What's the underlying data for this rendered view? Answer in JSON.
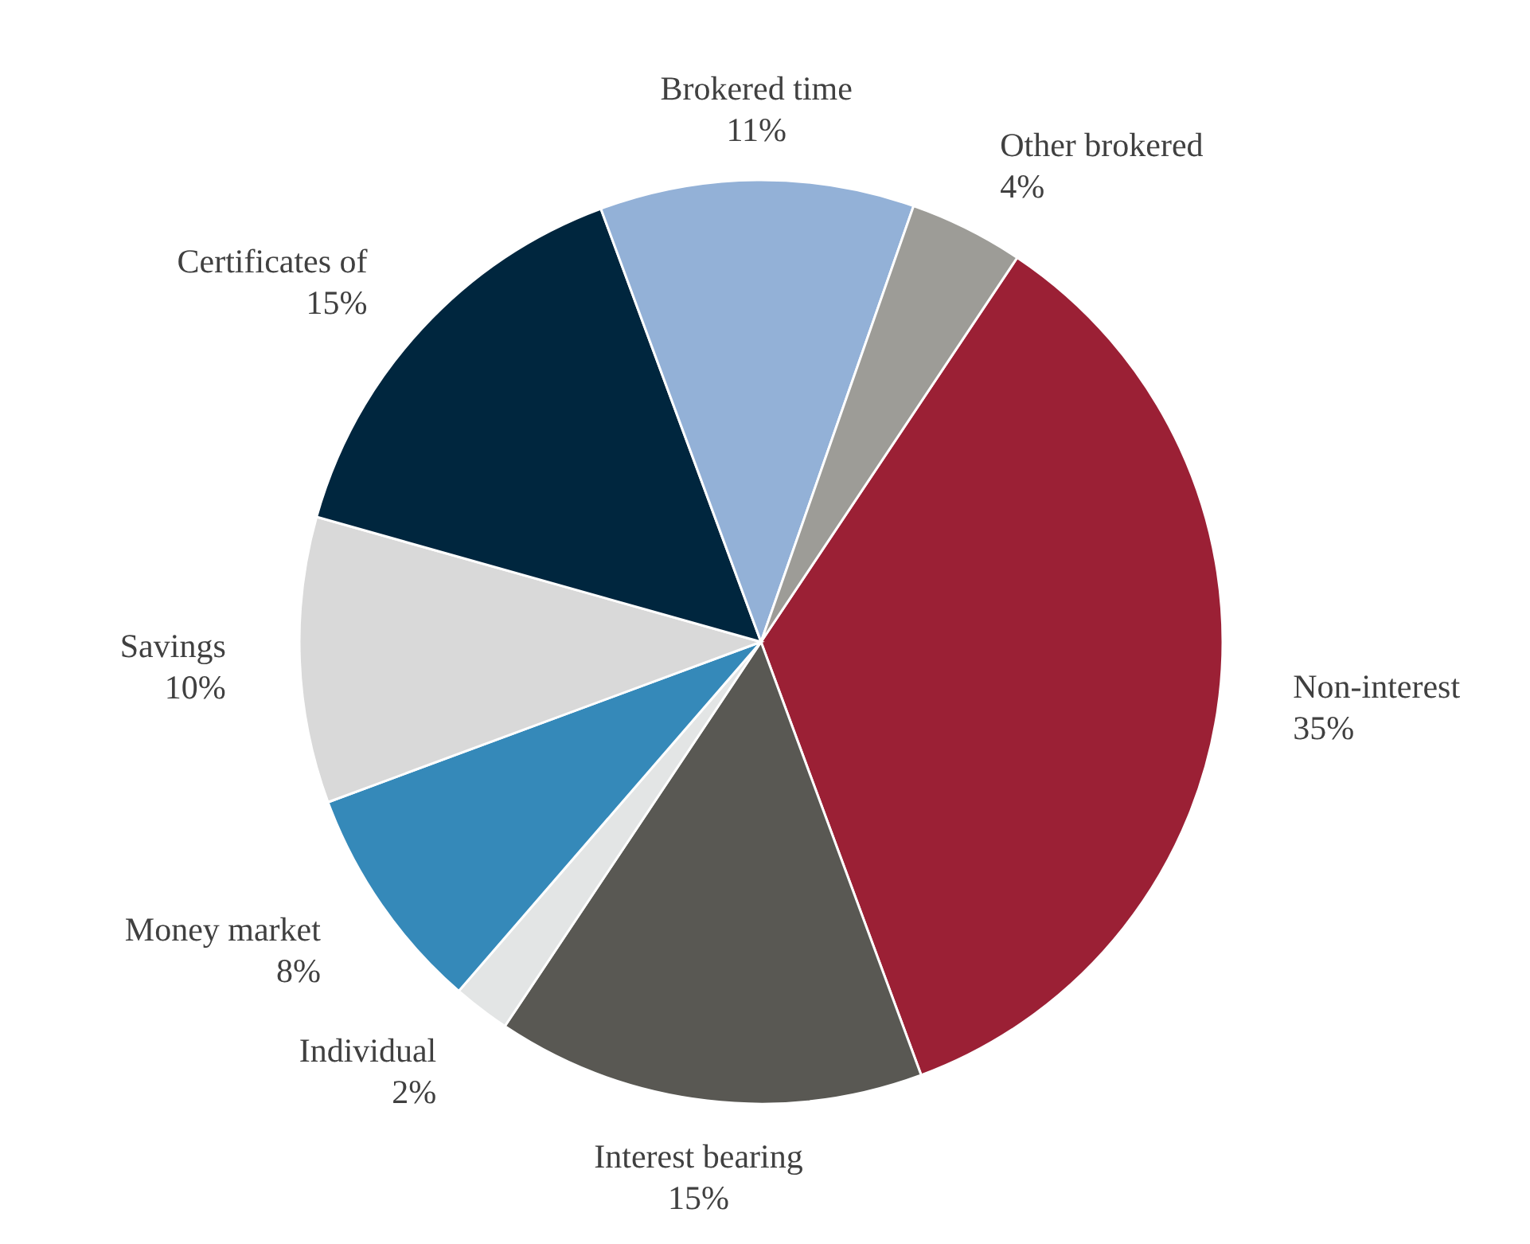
{
  "chart_data": {
    "type": "pie",
    "categories": [
      "Non-interest",
      "Interest bearing",
      "Individual",
      "Money market",
      "Savings",
      "Certificates of",
      "Brokered time",
      "Other brokered"
    ],
    "values": [
      35,
      15,
      2,
      8,
      10,
      15,
      11,
      4
    ],
    "value_labels": [
      "35%",
      "15%",
      "2%",
      "8%",
      "10%",
      "15%",
      "11%",
      "4%"
    ],
    "colors": [
      "#9b2035",
      "#595853",
      "#e3e5e5",
      "#3589b9",
      "#d9d9d9",
      "#00263e",
      "#93b1d7",
      "#9d9c97"
    ]
  }
}
